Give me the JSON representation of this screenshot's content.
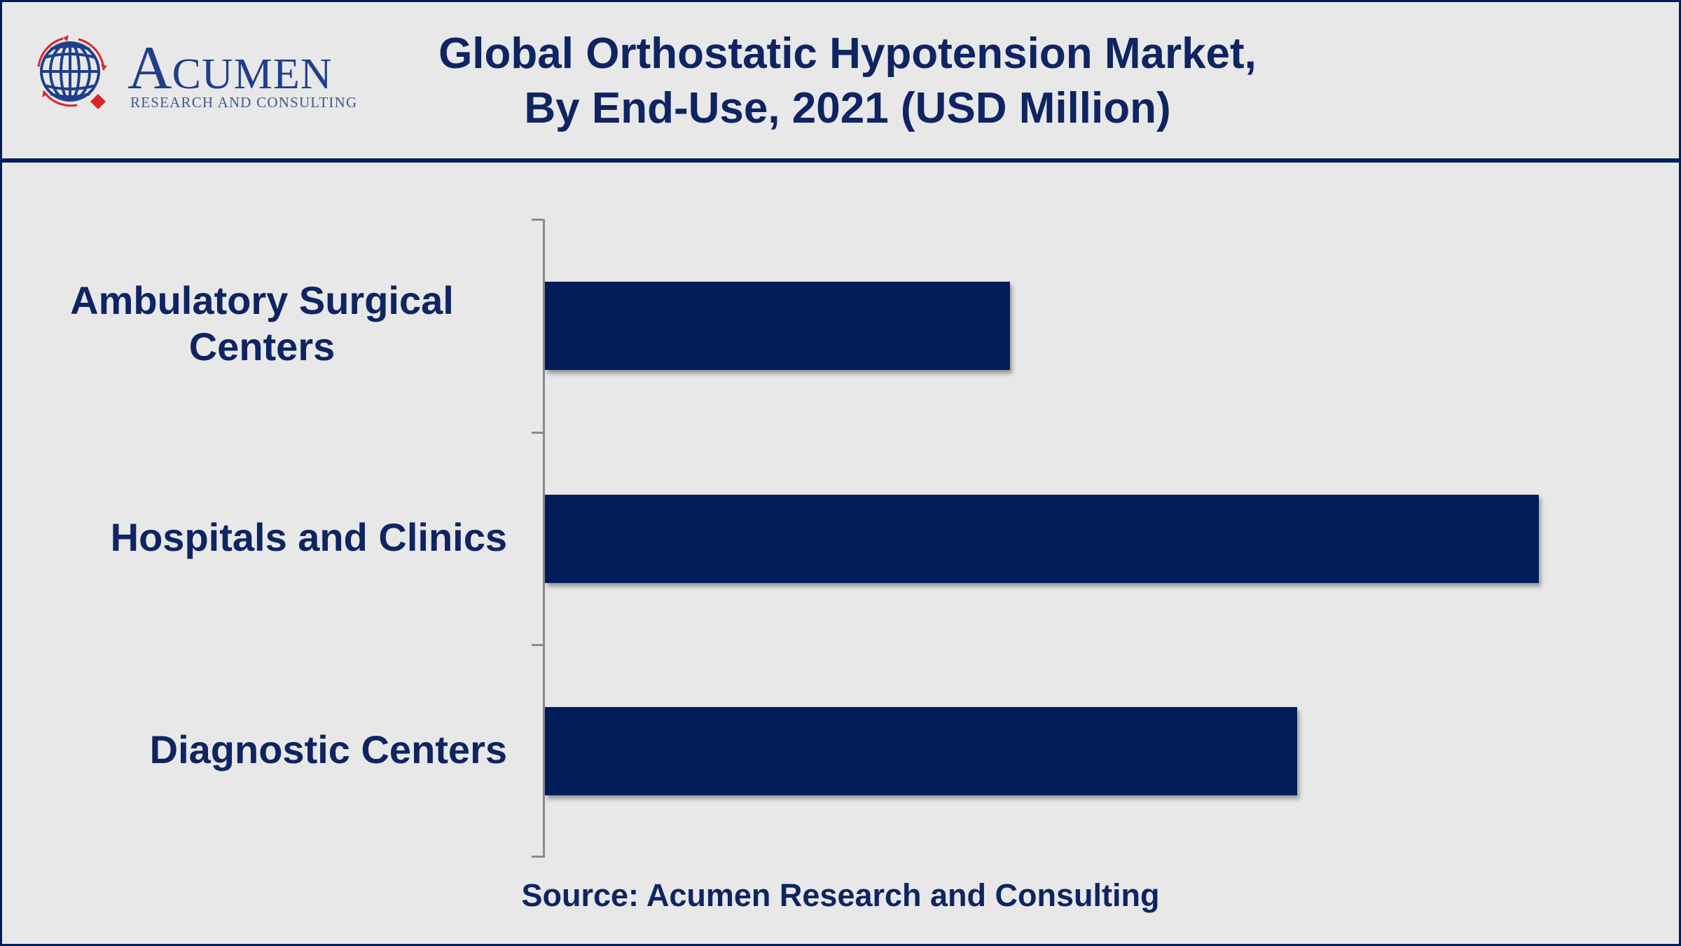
{
  "header": {
    "logo": {
      "wordmark_initial": "A",
      "wordmark_rest": "CUMEN",
      "tagline": "RESEARCH AND CONSULTING"
    },
    "title_line1": "Global Orthostatic Hypotension Market,",
    "title_line2": "By End-Use, 2021 (USD Million)"
  },
  "colors": {
    "navy": "#001d5a",
    "title_text": "#0e2463",
    "background": "#e8e8e8",
    "axis": "#8a8a8a",
    "logo_red": "#d9262b",
    "logo_blue": "#1f3f8c"
  },
  "categories": [
    {
      "label_line1": "Ambulatory Surgical",
      "label_line2": "Centers"
    },
    {
      "label": "Hospitals and Clinics"
    },
    {
      "label": "Diagnostic Centers"
    }
  ],
  "footer": {
    "source": "Source: Acumen Research and Consulting"
  },
  "chart_data": {
    "type": "bar",
    "orientation": "horizontal",
    "title": "Global Orthostatic Hypotension Market, By End-Use, 2021 (USD Million)",
    "categories": [
      "Ambulatory Surgical Centers",
      "Hospitals and Clinics",
      "Diagnostic Centers"
    ],
    "values": [
      46.8,
      100,
      75.7
    ],
    "values_note": "No numeric axis or data labels shown; values are relative bar lengths (largest = 100)",
    "xlabel": "",
    "ylabel": "",
    "grid": false,
    "legend": null,
    "bar_color": "#001d5a",
    "source": "Source: Acumen Research and Consulting"
  }
}
